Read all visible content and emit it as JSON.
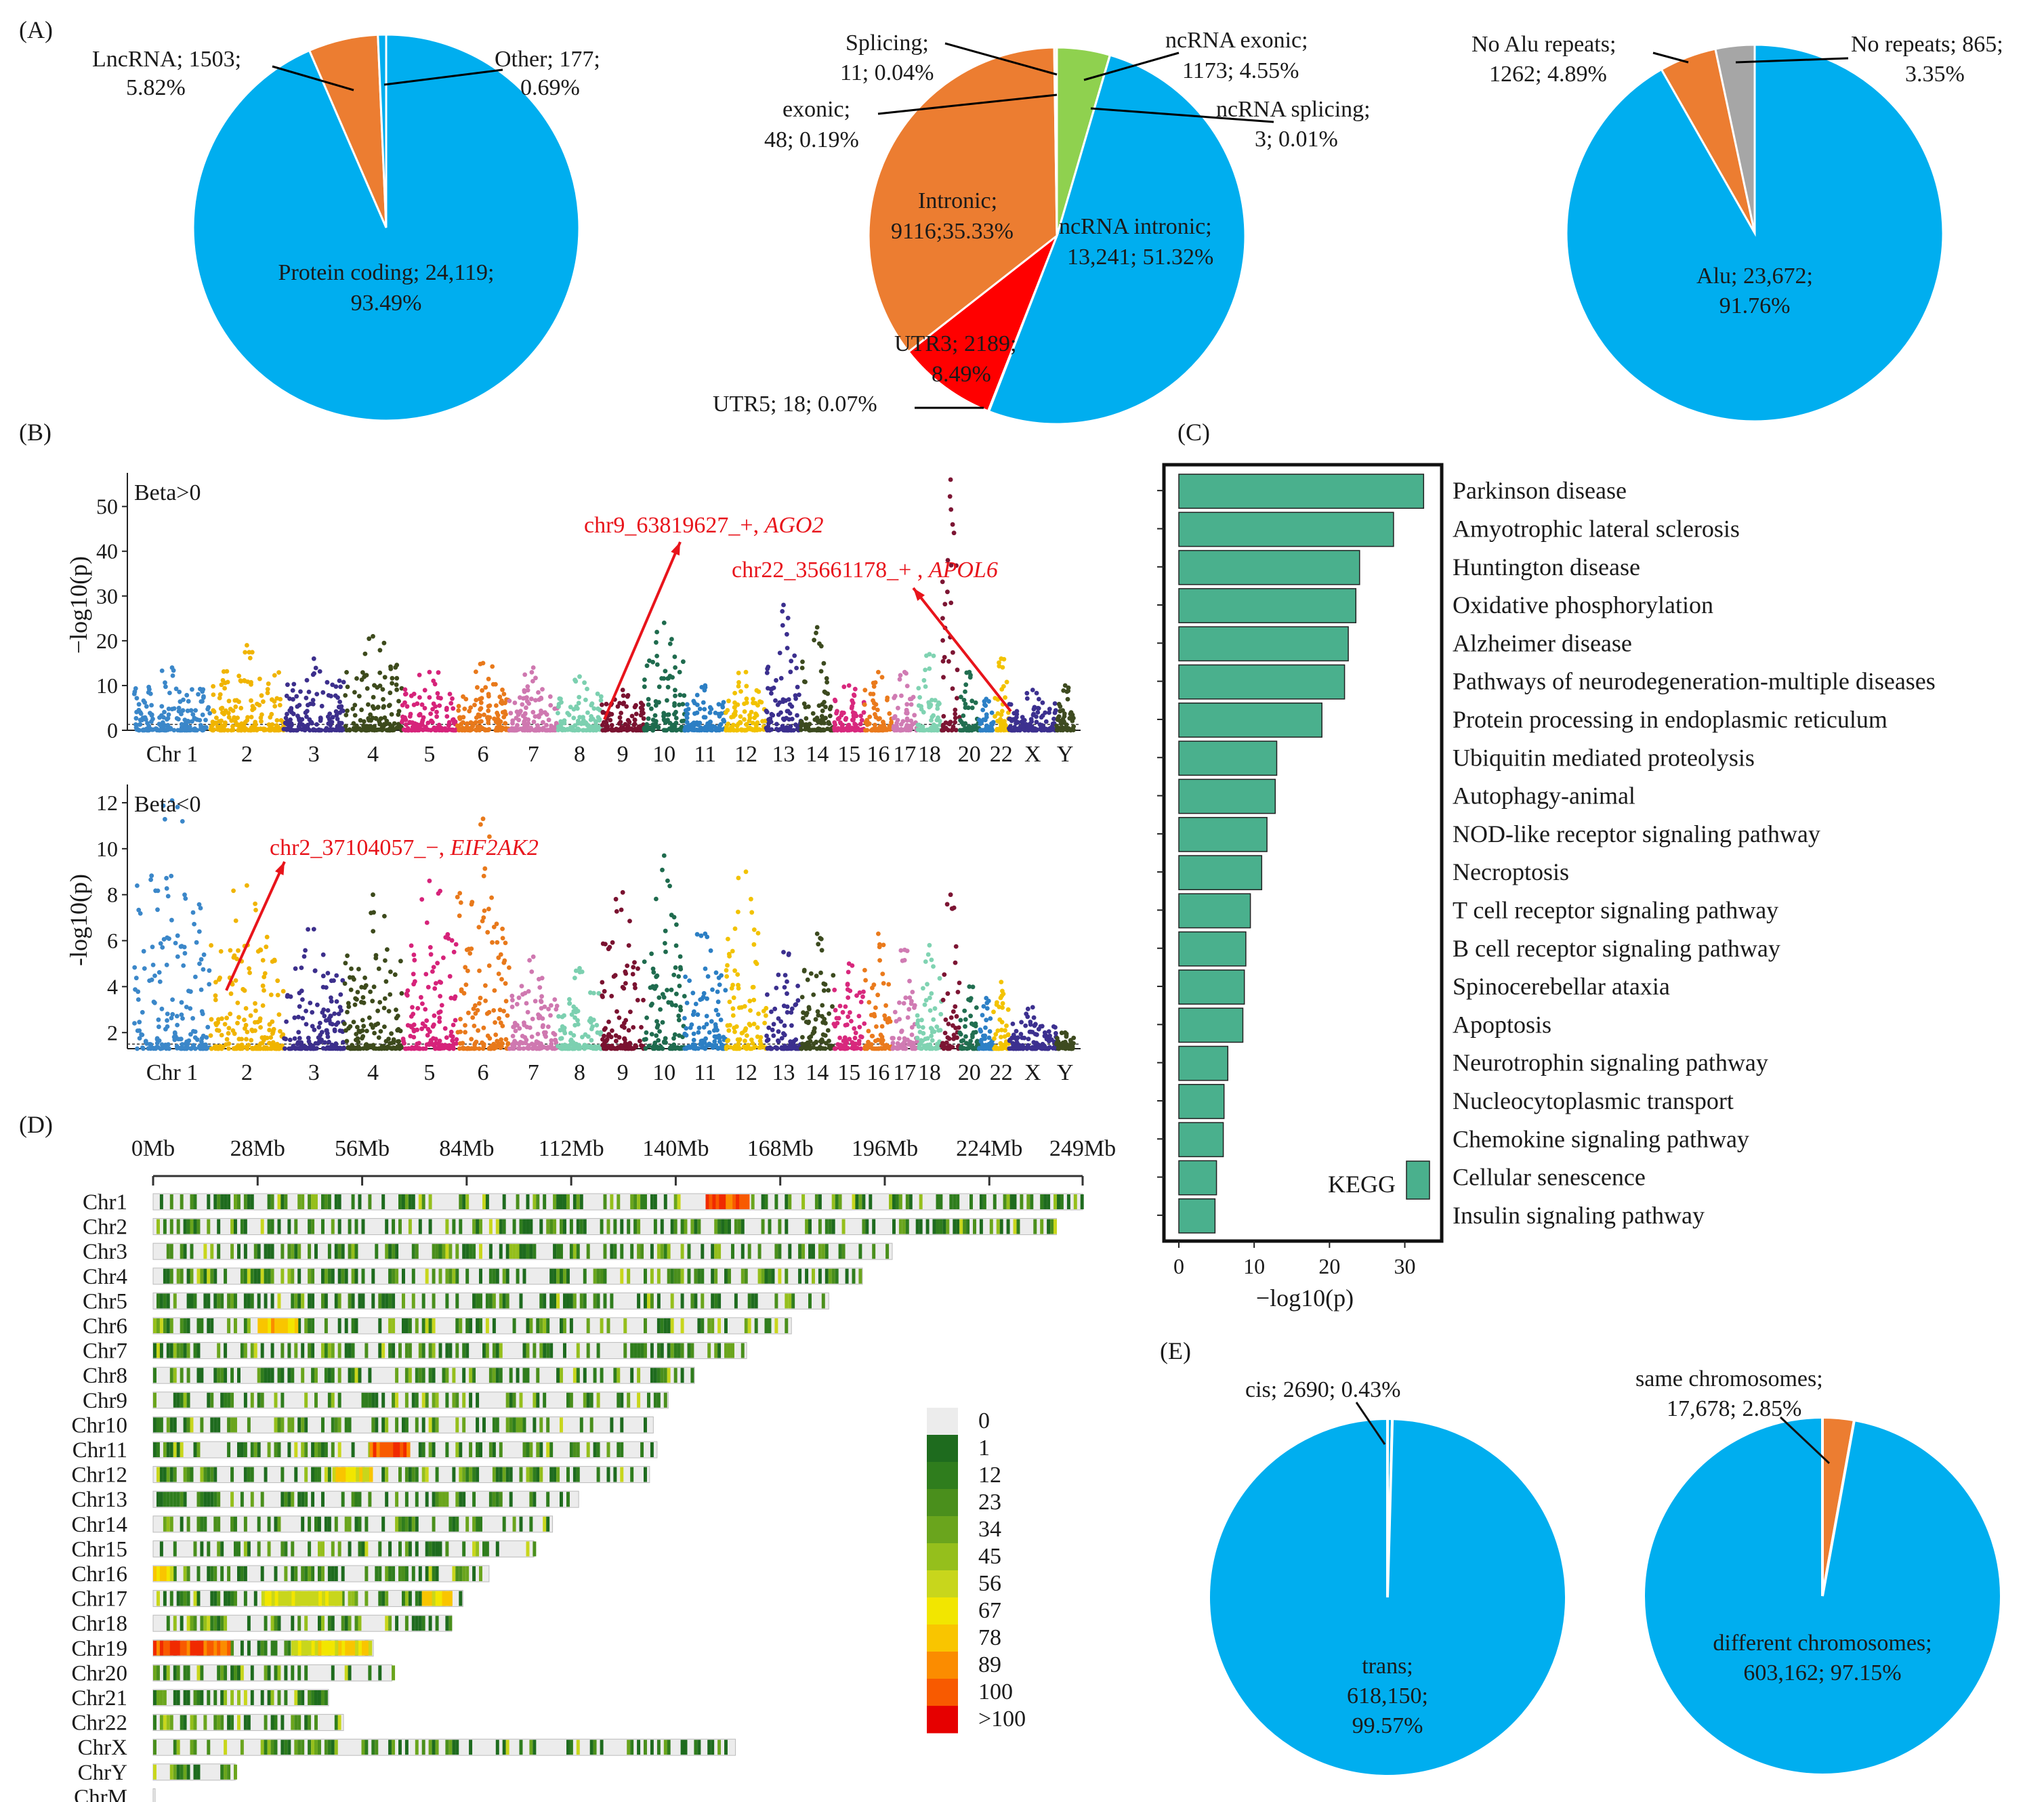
{
  "colors": {
    "blue": "#00aeef",
    "orange": "#ec7d31",
    "green": "#8fd14f",
    "red": "#ff0000",
    "gray": "#a6a6a6",
    "kegg_bar": "#4ab08d",
    "arrow": "#e8141b",
    "density_scale": [
      "#ececec",
      "#1e6b1e",
      "#2f7d1d",
      "#4a8f1c",
      "#6aa51d",
      "#95bf1c",
      "#c8d61c",
      "#f2e600",
      "#f9c500",
      "#fb8c00",
      "#f85a00",
      "#f02a00",
      "#e60000"
    ],
    "chr_palette": [
      "#3b87c9",
      "#f0b400",
      "#3c2f8c",
      "#3d4a1c",
      "#d6237a",
      "#e8791b",
      "#cf78b0",
      "#7cd0b0",
      "#7a1230",
      "#1f6b4e",
      "#2c7fc4",
      "#f2c200",
      "#3b2f8e",
      "#3c4a1f",
      "#d8287d",
      "#ea7a1c",
      "#d07bb3",
      "#80d3b2",
      "#7c1533",
      "#216e50",
      "#2d80c6",
      "#f3c300",
      "#3c308f",
      "#3e4b20"
    ]
  },
  "panel_labels": {
    "a": "(A)",
    "b": "(B)",
    "c": "(C)",
    "d": "(D)",
    "e": "(E)"
  },
  "chart_data": [
    {
      "id": "A1",
      "type": "pie",
      "slices": [
        {
          "label": "Protein coding",
          "value": 24119,
          "percent": 93.49,
          "line1": "Protein coding; 24,119;",
          "line2": "93.49%",
          "color": "blue"
        },
        {
          "label": "LncRNA",
          "value": 1503,
          "percent": 5.82,
          "line1": "LncRNA; 1503;",
          "line2": "5.82%",
          "color": "orange"
        },
        {
          "label": "Other",
          "value": 177,
          "percent": 0.69,
          "line1": "Other; 177;",
          "line2": "0.69%",
          "color": "blue"
        }
      ]
    },
    {
      "id": "A2",
      "type": "pie",
      "slices": [
        {
          "label": "ncRNA intronic",
          "value": 13241,
          "percent": 51.32,
          "line1": "ncRNA intronic;",
          "line2": "13,241; 51.32%",
          "color": "blue"
        },
        {
          "label": "UTR5",
          "value": 18,
          "percent": 0.07,
          "line1": "UTR5; 18; 0.07%",
          "line2": "",
          "color": "orange"
        },
        {
          "label": "UTR3",
          "value": 2189,
          "percent": 8.49,
          "line1": "UTR3; 2189;",
          "line2": "8.49%",
          "color": "red"
        },
        {
          "label": "Intronic",
          "value": 9116,
          "percent": 35.33,
          "line1": "Intronic;",
          "line2": "9116;35.33%",
          "color": "orange"
        },
        {
          "label": "exonic",
          "value": 48,
          "percent": 0.19,
          "line1": "exonic;",
          "line2": "48; 0.19%",
          "color": "orange"
        },
        {
          "label": "Splicing",
          "value": 11,
          "percent": 0.04,
          "line1": "Splicing;",
          "line2": "11; 0.04%",
          "color": "orange"
        },
        {
          "label": "ncRNA exonic",
          "value": 1173,
          "percent": 4.55,
          "line1": "ncRNA exonic;",
          "line2": "1173; 4.55%",
          "color": "green"
        },
        {
          "label": "ncRNA splicing",
          "value": 3,
          "percent": 0.01,
          "line1": "ncRNA splicing;",
          "line2": "3; 0.01%",
          "color": "green"
        }
      ]
    },
    {
      "id": "A3",
      "type": "pie",
      "slices": [
        {
          "label": "Alu",
          "value": 23672,
          "percent": 91.76,
          "line1": "Alu; 23,672;",
          "line2": "91.76%",
          "color": "blue"
        },
        {
          "label": "No Alu repeats",
          "value": 1262,
          "percent": 4.89,
          "line1": "No Alu repeats;",
          "line2": "1262; 4.89%",
          "color": "orange"
        },
        {
          "label": "No repeats",
          "value": 865,
          "percent": 3.35,
          "line1": "No repeats; 865;",
          "line2": "3.35%",
          "color": "gray"
        }
      ]
    },
    {
      "id": "B-top",
      "type": "scatter",
      "title": "Beta>0",
      "ylabel": "−log10(p)",
      "ylim": [
        0,
        56
      ],
      "yticks": [
        0,
        10,
        20,
        30,
        40,
        50
      ],
      "chromosomes": [
        "Chr 1",
        "2",
        "3",
        "4",
        "5",
        "6",
        "7",
        "8",
        "9",
        "10",
        "11",
        "12",
        "13",
        "14",
        "15",
        "16",
        "17",
        "18",
        "19",
        "20",
        "21",
        "22",
        "X",
        "Y"
      ],
      "chromosome_labels": [
        "Chr 1",
        "2",
        "3",
        "4",
        "5",
        "6",
        "7",
        "8",
        "9",
        "10",
        "11",
        "12",
        "13",
        "14",
        "15",
        "16",
        "17",
        "18",
        "",
        "20",
        "",
        "22",
        "X",
        "Y"
      ],
      "chr_peaks": [
        14,
        19,
        16,
        21,
        13,
        15,
        14,
        12,
        9,
        24,
        10,
        13,
        28,
        23,
        10,
        13,
        13,
        17,
        56,
        13,
        7,
        16,
        9,
        10
      ],
      "threshold": 1.3,
      "annotations": [
        {
          "chr_index": 8,
          "value": 4,
          "label_prefix": "chr9_63819627_+, ",
          "gene": "AGO2"
        },
        {
          "chr_index": 21,
          "value": 5,
          "label_prefix": "chr22_35661178_+ , ",
          "gene": "APOL6"
        }
      ]
    },
    {
      "id": "B-bottom",
      "type": "scatter",
      "title": "Beta<0",
      "ylabel": "-log10(p)",
      "ylim": [
        1.3,
        12.5
      ],
      "yticks": [
        2,
        4,
        6,
        8,
        10,
        12
      ],
      "chromosomes": [
        "Chr 1",
        "2",
        "3",
        "4",
        "5",
        "6",
        "7",
        "8",
        "9",
        "10",
        "11",
        "12",
        "13",
        "14",
        "15",
        "16",
        "17",
        "18",
        "19",
        "20",
        "21",
        "22",
        "X",
        "Y"
      ],
      "chromosome_labels": [
        "Chr 1",
        "2",
        "3",
        "4",
        "5",
        "6",
        "7",
        "8",
        "9",
        "10",
        "11",
        "12",
        "13",
        "14",
        "15",
        "16",
        "17",
        "18",
        "",
        "20",
        "",
        "22",
        "X",
        "Y"
      ],
      "chr_peaks": [
        12.1,
        8.4,
        6.5,
        8.0,
        8.6,
        11.3,
        5.3,
        4.8,
        8.1,
        9.7,
        6.3,
        9.0,
        5.5,
        6.3,
        5.0,
        6.3,
        5.6,
        5.8,
        8.0,
        4.0,
        3.5,
        4.2,
        3.1,
        2.0
      ],
      "threshold": 1.5,
      "annotations": [
        {
          "chr_index": 1,
          "value": 3.8,
          "label_prefix": "chr2_37104057_−, ",
          "gene": "EIF2AK2"
        }
      ]
    },
    {
      "id": "C",
      "type": "bar",
      "orientation": "horizontal",
      "title": "KEGG",
      "xlabel": "−log10(p)",
      "xlim": [
        0,
        34
      ],
      "xticks": [
        0,
        10,
        20,
        30
      ],
      "categories": [
        "Parkinson disease",
        "Amyotrophic lateral sclerosis",
        "Huntington disease",
        "Oxidative phosphorylation",
        "Alzheimer disease",
        "Pathways of neurodegeneration-multiple diseases",
        "Protein processing in endoplasmic reticulum",
        "Ubiquitin mediated proteolysis",
        "Autophagy-animal",
        "NOD-like receptor signaling pathway",
        "Necroptosis",
        "T cell receptor signaling pathway",
        "B cell receptor signaling pathway",
        "Spinocerebellar ataxia",
        "Apoptosis",
        "Neurotrophin signaling pathway",
        "Nucleocytoplasmic transport",
        "Chemokine signaling pathway",
        "Cellular senescence",
        "Insulin signaling pathway"
      ],
      "values": [
        32.5,
        28.5,
        24.0,
        23.5,
        22.5,
        22.0,
        19.0,
        13.0,
        12.8,
        11.7,
        11.0,
        9.5,
        8.9,
        8.7,
        8.5,
        6.5,
        6.0,
        5.9,
        5.0,
        4.8
      ]
    },
    {
      "id": "D",
      "type": "heatmap",
      "axis_ticks": [
        "0Mb",
        "28Mb",
        "56Mb",
        "84Mb",
        "112Mb",
        "140Mb",
        "168Mb",
        "196Mb",
        "224Mb",
        "249Mb"
      ],
      "axis_tick_values_mb": [
        0,
        28,
        56,
        84,
        112,
        140,
        168,
        196,
        224,
        249
      ],
      "chromosomes": [
        "Chr1",
        "Chr2",
        "Chr3",
        "Chr4",
        "Chr5",
        "Chr6",
        "Chr7",
        "Chr8",
        "Chr9",
        "Chr10",
        "Chr11",
        "Chr12",
        "Chr13",
        "Chr14",
        "Chr15",
        "Chr16",
        "Chr17",
        "Chr18",
        "Chr19",
        "Chr20",
        "Chr21",
        "Chr22",
        "ChrX",
        "ChrY",
        "ChrM"
      ],
      "lengths_mb": [
        249,
        242,
        198,
        190,
        181,
        171,
        159,
        145,
        138,
        134,
        135,
        133,
        114,
        107,
        102,
        90,
        83,
        80,
        59,
        64,
        47,
        51,
        156,
        22,
        0.5
      ],
      "hotspots": [
        {
          "chr": "Chr1",
          "start_mb": 148,
          "end_mb": 159,
          "level": 11
        },
        {
          "chr": "Chr6",
          "start_mb": 28,
          "end_mb": 38,
          "level": 9
        },
        {
          "chr": "Chr11",
          "start_mb": 58,
          "end_mb": 68,
          "level": 11
        },
        {
          "chr": "Chr12",
          "start_mb": 48,
          "end_mb": 58,
          "level": 8
        },
        {
          "chr": "Chr16",
          "start_mb": 0,
          "end_mb": 5,
          "level": 8
        },
        {
          "chr": "Chr17",
          "start_mb": 29,
          "end_mb": 50,
          "level": 7
        },
        {
          "chr": "Chr17",
          "start_mb": 72,
          "end_mb": 80,
          "level": 8
        },
        {
          "chr": "Chr19",
          "start_mb": 0,
          "end_mb": 20,
          "level": 11
        },
        {
          "chr": "Chr19",
          "start_mb": 37,
          "end_mb": 58,
          "level": 8
        }
      ],
      "legend_labels": [
        "0",
        "1",
        "12",
        "23",
        "34",
        "45",
        "56",
        "67",
        "78",
        "89",
        "100",
        ">100"
      ]
    },
    {
      "id": "E1",
      "type": "pie",
      "slices": [
        {
          "label": "trans",
          "value": 618150,
          "percent": 99.57,
          "line1": "trans;",
          "line2": "618,150;",
          "line3": "99.57%",
          "color": "blue"
        },
        {
          "label": "cis",
          "value": 2690,
          "percent": 0.43,
          "line1": "cis; 2690; 0.43%",
          "color": "blue"
        }
      ]
    },
    {
      "id": "E2",
      "type": "pie",
      "slices": [
        {
          "label": "different chromosomes",
          "value": 603162,
          "percent": 97.15,
          "line1": "different chromosomes;",
          "line2": "603,162; 97.15%",
          "color": "blue"
        },
        {
          "label": "same chromosomes",
          "value": 17678,
          "percent": 2.85,
          "line1": "same chromosomes;",
          "line2": "17,678; 2.85%",
          "color": "orange"
        }
      ]
    }
  ]
}
